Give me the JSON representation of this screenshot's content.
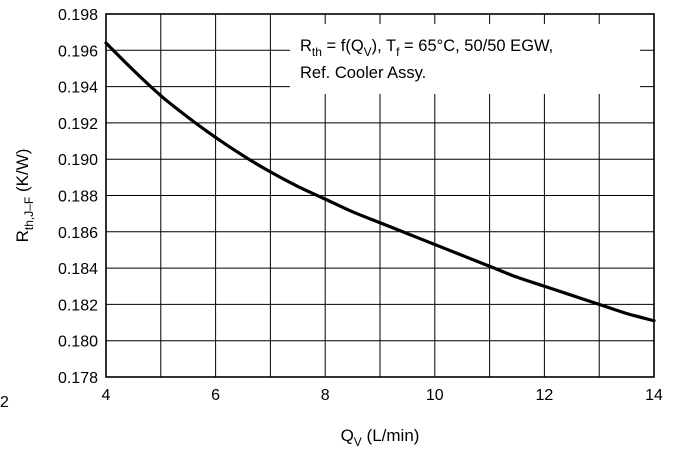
{
  "chart_data": {
    "type": "line",
    "title": "",
    "xlabel": {
      "main": "Q",
      "sub": "V",
      "unit": " (L/min)"
    },
    "ylabel": {
      "main": "R",
      "sub": "th,J–F",
      "unit": " (K/W)"
    },
    "xlim": [
      4,
      14
    ],
    "ylim": [
      0.178,
      0.198
    ],
    "x_ticks": [
      4,
      5,
      6,
      7,
      8,
      9,
      10,
      11,
      12,
      13,
      14
    ],
    "x_tick_labels": [
      "4",
      "",
      "6",
      "",
      "8",
      "",
      "10",
      "",
      "12",
      "",
      "14"
    ],
    "y_ticks": [
      0.178,
      0.18,
      0.182,
      0.184,
      0.186,
      0.188,
      0.19,
      0.192,
      0.194,
      0.196,
      0.198
    ],
    "y_tick_labels": [
      "0.178",
      "0.180",
      "0.182",
      "0.184",
      "0.186",
      "0.188",
      "0.190",
      "0.192",
      "0.194",
      "0.196",
      "0.198"
    ],
    "grid": true,
    "stray_label": "2",
    "legend": {
      "placement": "top-right",
      "line1": [
        {
          "t": "R"
        },
        {
          "t": "th",
          "sub": true
        },
        {
          "t": " = f(Q"
        },
        {
          "t": "V",
          "sub": true
        },
        {
          "t": "), T"
        },
        {
          "t": "f",
          "sub": true
        },
        {
          "t": " = 65°C, 50/50 EGW,"
        }
      ],
      "line2": "Ref. Cooler Assy."
    },
    "series": [
      {
        "x": [
          4.0,
          4.5,
          5.0,
          5.5,
          6.0,
          6.5,
          7.0,
          7.5,
          8.0,
          8.5,
          9.0,
          9.5,
          10.0,
          10.5,
          11.0,
          11.5,
          12.0,
          12.5,
          13.0,
          13.5,
          14.0
        ],
        "y": [
          0.1964,
          0.1949,
          0.1935,
          0.1923,
          0.1912,
          0.1902,
          0.1893,
          0.1885,
          0.1878,
          0.1871,
          0.1865,
          0.1859,
          0.1853,
          0.1847,
          0.1841,
          0.1835,
          0.183,
          0.1825,
          0.182,
          0.1815,
          0.1811
        ]
      }
    ]
  }
}
